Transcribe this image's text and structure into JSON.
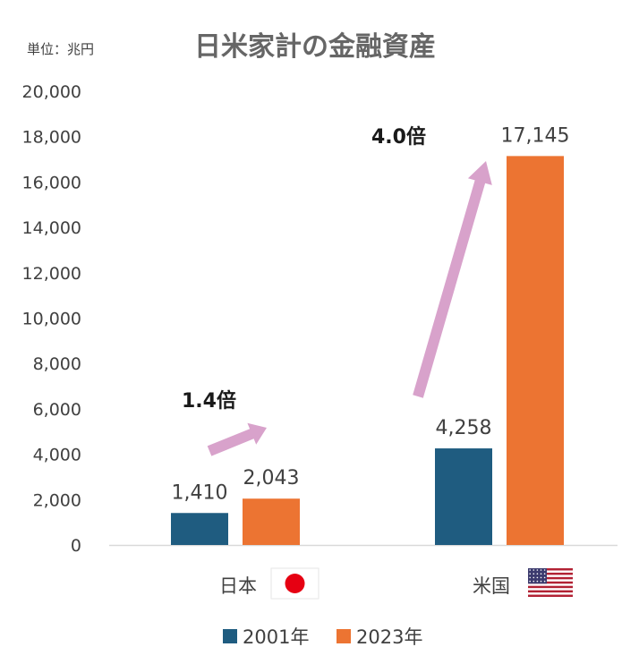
{
  "unit_label": "単位：兆円",
  "chart_data": {
    "type": "bar",
    "title": "日米家計の金融資産",
    "categories": [
      "日本",
      "米国"
    ],
    "series": [
      {
        "name": "2001年",
        "values": [
          1410,
          4258
        ]
      },
      {
        "name": "2023年",
        "values": [
          2043,
          17145
        ]
      }
    ],
    "value_labels": [
      [
        "1,410",
        "4,258"
      ],
      [
        "2,043",
        "17,145"
      ]
    ],
    "ratio_labels": [
      "1.4倍",
      "4.0倍"
    ],
    "ylim": [
      0,
      20000
    ],
    "yticks": [
      0,
      2000,
      4000,
      6000,
      8000,
      10000,
      12000,
      14000,
      16000,
      18000,
      20000
    ],
    "ytick_labels": [
      "0",
      "2,000",
      "4,000",
      "6,000",
      "8,000",
      "10,000",
      "12,000",
      "14,000",
      "16,000",
      "18,000",
      "20,000"
    ],
    "grid": false,
    "legend_position": "bottom",
    "category_flags": [
      "japan-flag-icon",
      "us-flag-icon"
    ]
  },
  "colors": {
    "series_2001": "#1f5c80",
    "series_2023": "#ec7432",
    "arrow": "#d8a2cb",
    "axis": "#d9d9d9",
    "jp_red": "#e60012",
    "us_red": "#b22234",
    "us_blue": "#3c3b6e"
  }
}
